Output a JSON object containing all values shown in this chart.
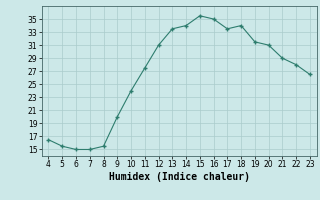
{
  "x": [
    4,
    5,
    6,
    7,
    8,
    9,
    10,
    11,
    12,
    13,
    14,
    15,
    16,
    17,
    18,
    19,
    20,
    21,
    22,
    23
  ],
  "y": [
    16.5,
    15.5,
    15.0,
    15.0,
    15.5,
    20.0,
    24.0,
    27.5,
    31.0,
    33.5,
    34.0,
    35.5,
    35.0,
    33.5,
    34.0,
    31.5,
    31.0,
    29.0,
    28.0,
    26.5
  ],
  "xlabel": "Humidex (Indice chaleur)",
  "xlim": [
    3.5,
    23.5
  ],
  "ylim": [
    14,
    37
  ],
  "yticks": [
    15,
    17,
    19,
    21,
    23,
    25,
    27,
    29,
    31,
    33,
    35
  ],
  "xticks": [
    4,
    5,
    6,
    7,
    8,
    9,
    10,
    11,
    12,
    13,
    14,
    15,
    16,
    17,
    18,
    19,
    20,
    21,
    22,
    23
  ],
  "line_color": "#2e7d6e",
  "marker_color": "#2e7d6e",
  "bg_color": "#cce8e8",
  "grid_color": "#aacccc",
  "tick_fontsize": 5.5,
  "label_fontsize": 7.0
}
